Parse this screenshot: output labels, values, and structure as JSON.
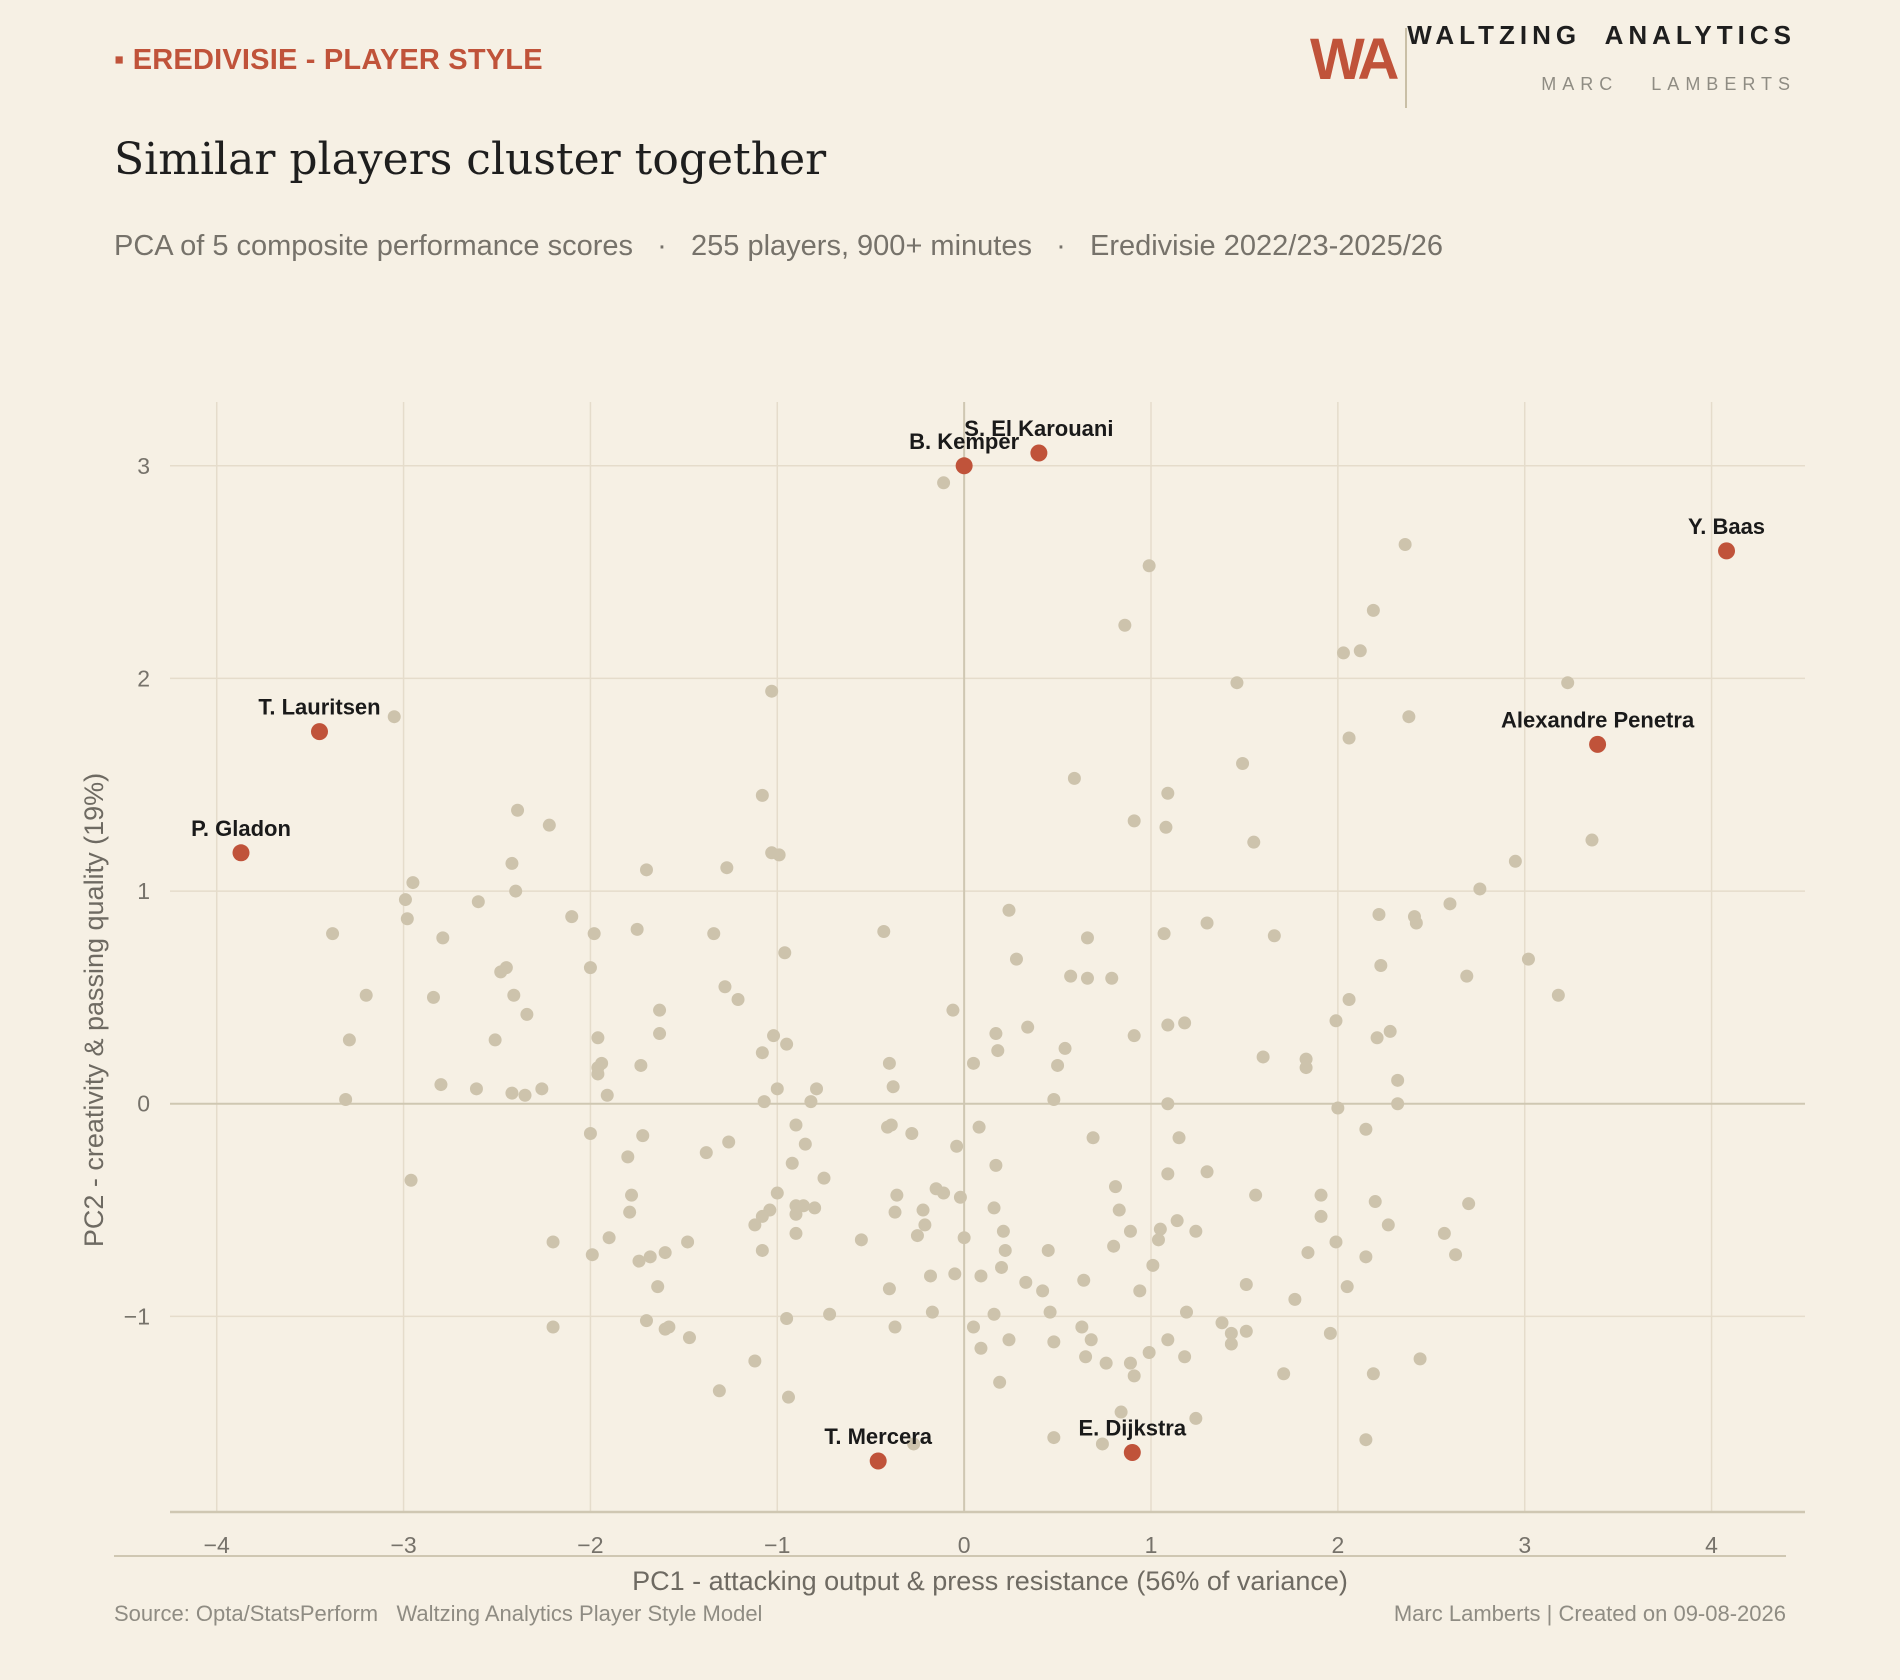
{
  "header": {
    "kicker": "▪ EREDIVISIE - PLAYER STYLE",
    "logo_mark": "WA",
    "brand": "WALTZING  ANALYTICS",
    "author": "MARC   LAMBERTS",
    "title": "Similar players cluster together",
    "subtitle": "PCA of 5 composite performance scores   ·   255 players, 900+ minutes   ·   Eredivisie 2022/23-2025/26"
  },
  "footer": {
    "source": "Source: Opta/StatsPerform   Waltzing Analytics Player Style Model",
    "credit": "Marc Lamberts | Created on 09-08-2026"
  },
  "colors": {
    "background": "#f6f0e4",
    "accent": "#c0533a",
    "points": "#cdc3ac",
    "grid": "#e5dccb",
    "zero_line": "#cfc7b2"
  },
  "chart_data": {
    "type": "scatter",
    "xlabel": "PC1 - attacking output & press resistance (56% of variance)",
    "ylabel": "PC2 - creativity & passing quality (19%)",
    "xlim": [
      -4.25,
      4.5
    ],
    "ylim": [
      -1.92,
      3.3
    ],
    "xticks": [
      -4,
      -3,
      -2,
      -1,
      0,
      1,
      2,
      3,
      4
    ],
    "yticks": [
      -1,
      0,
      1,
      2,
      3
    ],
    "grid": true,
    "highlighted": [
      {
        "name": "B. Kemper",
        "x": 0.0,
        "y": 3.0
      },
      {
        "name": "S. El Karouani",
        "x": 0.4,
        "y": 3.06
      },
      {
        "name": "Y. Baas",
        "x": 4.08,
        "y": 2.6
      },
      {
        "name": "Alexandre Penetra",
        "x": 3.39,
        "y": 1.69
      },
      {
        "name": "T. Lauritsen",
        "x": -3.45,
        "y": 1.75
      },
      {
        "name": "P. Gladon",
        "x": -3.87,
        "y": 1.18
      },
      {
        "name": "T. Mercera",
        "x": -0.46,
        "y": -1.68
      },
      {
        "name": "E. Dijkstra",
        "x": 0.9,
        "y": -1.64
      }
    ],
    "points": [
      [
        -0.11,
        2.92
      ],
      [
        0.99,
        2.53
      ],
      [
        0.86,
        2.25
      ],
      [
        2.36,
        2.63
      ],
      [
        2.19,
        2.32
      ],
      [
        2.03,
        2.12
      ],
      [
        2.12,
        2.13
      ],
      [
        1.46,
        1.98
      ],
      [
        3.23,
        1.98
      ],
      [
        2.06,
        1.72
      ],
      [
        2.38,
        1.82
      ],
      [
        1.49,
        1.6
      ],
      [
        0.59,
        1.53
      ],
      [
        1.09,
        1.46
      ],
      [
        0.91,
        1.33
      ],
      [
        1.08,
        1.3
      ],
      [
        1.55,
        1.23
      ],
      [
        3.36,
        1.24
      ],
      [
        2.95,
        1.14
      ],
      [
        2.76,
        1.01
      ],
      [
        2.6,
        0.94
      ],
      [
        2.22,
        0.89
      ],
      [
        2.41,
        0.88
      ],
      [
        2.42,
        0.85
      ],
      [
        1.3,
        0.85
      ],
      [
        1.66,
        0.79
      ],
      [
        1.07,
        0.8
      ],
      [
        0.66,
        0.78
      ],
      [
        0.24,
        0.91
      ],
      [
        0.28,
        0.68
      ],
      [
        0.57,
        0.6
      ],
      [
        0.66,
        0.59
      ],
      [
        0.79,
        0.59
      ],
      [
        2.23,
        0.65
      ],
      [
        2.69,
        0.6
      ],
      [
        3.02,
        0.68
      ],
      [
        3.18,
        0.51
      ],
      [
        2.06,
        0.49
      ],
      [
        1.99,
        0.39
      ],
      [
        2.28,
        0.34
      ],
      [
        2.21,
        0.31
      ],
      [
        1.09,
        0.37
      ],
      [
        1.18,
        0.38
      ],
      [
        0.91,
        0.32
      ],
      [
        0.34,
        0.36
      ],
      [
        0.17,
        0.33
      ],
      [
        0.18,
        0.25
      ],
      [
        0.54,
        0.26
      ],
      [
        0.5,
        0.18
      ],
      [
        0.05,
        0.19
      ],
      [
        -0.06,
        0.44
      ],
      [
        1.6,
        0.22
      ],
      [
        1.83,
        0.21
      ],
      [
        1.83,
        0.17
      ],
      [
        2.32,
        0.11
      ],
      [
        0.48,
        0.02
      ],
      [
        1.09,
        0.0
      ],
      [
        2.32,
        0.0
      ],
      [
        2.0,
        -0.02
      ],
      [
        0.69,
        -0.16
      ],
      [
        1.15,
        -0.16
      ],
      [
        2.15,
        -0.12
      ],
      [
        1.3,
        -0.32
      ],
      [
        1.09,
        -0.33
      ],
      [
        0.17,
        -0.29
      ],
      [
        -0.04,
        -0.2
      ],
      [
        0.08,
        -0.11
      ],
      [
        0.81,
        -0.39
      ],
      [
        0.83,
        -0.5
      ],
      [
        1.56,
        -0.43
      ],
      [
        1.91,
        -0.43
      ],
      [
        2.2,
        -0.46
      ],
      [
        2.7,
        -0.47
      ],
      [
        0.16,
        -0.49
      ],
      [
        -0.02,
        -0.44
      ],
      [
        -0.11,
        -0.42
      ],
      [
        -0.15,
        -0.4
      ],
      [
        -0.22,
        -0.5
      ],
      [
        -0.21,
        -0.57
      ],
      [
        -0.25,
        -0.62
      ],
      [
        -0.36,
        -0.43
      ],
      [
        -0.37,
        -0.51
      ],
      [
        0.0,
        -0.63
      ],
      [
        0.21,
        -0.6
      ],
      [
        0.22,
        -0.69
      ],
      [
        0.89,
        -0.6
      ],
      [
        1.05,
        -0.59
      ],
      [
        1.14,
        -0.55
      ],
      [
        1.04,
        -0.64
      ],
      [
        1.24,
        -0.6
      ],
      [
        1.91,
        -0.53
      ],
      [
        2.27,
        -0.57
      ],
      [
        2.57,
        -0.61
      ],
      [
        2.63,
        -0.71
      ],
      [
        1.99,
        -0.65
      ],
      [
        1.84,
        -0.7
      ],
      [
        2.15,
        -0.72
      ],
      [
        0.8,
        -0.67
      ],
      [
        1.01,
        -0.76
      ],
      [
        0.45,
        -0.69
      ],
      [
        0.2,
        -0.77
      ],
      [
        0.09,
        -0.81
      ],
      [
        -0.05,
        -0.8
      ],
      [
        -0.18,
        -0.81
      ],
      [
        0.33,
        -0.84
      ],
      [
        0.42,
        -0.88
      ],
      [
        0.64,
        -0.83
      ],
      [
        0.94,
        -0.88
      ],
      [
        1.51,
        -0.85
      ],
      [
        2.05,
        -0.86
      ],
      [
        1.77,
        -0.92
      ],
      [
        1.19,
        -0.98
      ],
      [
        0.46,
        -0.98
      ],
      [
        0.16,
        -0.99
      ],
      [
        0.05,
        -1.05
      ],
      [
        -0.17,
        -0.98
      ],
      [
        -0.37,
        -1.05
      ],
      [
        -0.4,
        -0.87
      ],
      [
        0.09,
        -1.15
      ],
      [
        0.24,
        -1.11
      ],
      [
        0.48,
        -1.12
      ],
      [
        0.63,
        -1.05
      ],
      [
        0.68,
        -1.11
      ],
      [
        0.65,
        -1.19
      ],
      [
        0.76,
        -1.22
      ],
      [
        0.99,
        -1.17
      ],
      [
        1.09,
        -1.11
      ],
      [
        1.18,
        -1.19
      ],
      [
        0.89,
        -1.22
      ],
      [
        0.91,
        -1.28
      ],
      [
        0.19,
        -1.31
      ],
      [
        1.38,
        -1.03
      ],
      [
        1.43,
        -1.08
      ],
      [
        1.43,
        -1.13
      ],
      [
        1.51,
        -1.07
      ],
      [
        1.96,
        -1.08
      ],
      [
        1.71,
        -1.27
      ],
      [
        2.19,
        -1.27
      ],
      [
        2.44,
        -1.2
      ],
      [
        0.48,
        -1.57
      ],
      [
        0.74,
        -1.6
      ],
      [
        0.84,
        -1.45
      ],
      [
        1.24,
        -1.48
      ],
      [
        2.15,
        -1.58
      ],
      [
        -0.27,
        -1.6
      ],
      [
        -0.39,
        -0.1
      ],
      [
        -0.41,
        -0.11
      ],
      [
        -0.28,
        -0.14
      ],
      [
        -0.38,
        0.08
      ],
      [
        -0.4,
        0.19
      ],
      [
        -0.43,
        0.81
      ],
      [
        -0.75,
        -0.35
      ],
      [
        -0.72,
        -0.99
      ],
      [
        -0.55,
        -0.64
      ],
      [
        -0.8,
        -0.49
      ],
      [
        -0.86,
        -0.48
      ],
      [
        -0.9,
        -0.48
      ],
      [
        -0.9,
        -0.52
      ],
      [
        -0.9,
        -0.61
      ],
      [
        -0.92,
        -0.28
      ],
      [
        -0.9,
        -0.1
      ],
      [
        -0.85,
        -0.19
      ],
      [
        -1.0,
        -0.42
      ],
      [
        -1.04,
        -0.5
      ],
      [
        -1.08,
        -0.53
      ],
      [
        -1.12,
        -0.57
      ],
      [
        -1.08,
        -0.69
      ],
      [
        -0.95,
        -1.01
      ],
      [
        -0.94,
        -1.38
      ],
      [
        -1.12,
        -1.21
      ],
      [
        -1.31,
        -1.35
      ],
      [
        -1.38,
        -0.23
      ],
      [
        -1.26,
        -0.18
      ],
      [
        -0.82,
        0.01
      ],
      [
        -0.79,
        0.07
      ],
      [
        -1.0,
        0.07
      ],
      [
        -1.07,
        0.01
      ],
      [
        -1.08,
        0.24
      ],
      [
        -0.95,
        0.28
      ],
      [
        -1.02,
        0.32
      ],
      [
        -0.96,
        0.71
      ],
      [
        -1.21,
        0.49
      ],
      [
        -1.28,
        0.55
      ],
      [
        -1.34,
        0.8
      ],
      [
        -0.99,
        1.17
      ],
      [
        -1.03,
        1.18
      ],
      [
        -1.27,
        1.11
      ],
      [
        -1.08,
        1.45
      ],
      [
        -1.03,
        1.94
      ],
      [
        -1.63,
        0.44
      ],
      [
        -1.63,
        0.33
      ],
      [
        -1.73,
        0.18
      ],
      [
        -1.75,
        0.82
      ],
      [
        -1.7,
        1.1
      ],
      [
        -1.72,
        -0.15
      ],
      [
        -1.8,
        -0.25
      ],
      [
        -1.78,
        -0.43
      ],
      [
        -1.79,
        -0.51
      ],
      [
        -1.9,
        -0.63
      ],
      [
        -1.74,
        -0.74
      ],
      [
        -1.68,
        -0.72
      ],
      [
        -1.6,
        -0.7
      ],
      [
        -1.64,
        -0.86
      ],
      [
        -1.48,
        -0.65
      ],
      [
        -1.7,
        -1.02
      ],
      [
        -1.6,
        -1.06
      ],
      [
        -1.58,
        -1.05
      ],
      [
        -1.47,
        -1.1
      ],
      [
        -1.99,
        -0.71
      ],
      [
        -2.0,
        -0.14
      ],
      [
        -2.2,
        -0.65
      ],
      [
        -2.2,
        -1.05
      ],
      [
        -1.96,
        0.31
      ],
      [
        -1.94,
        0.19
      ],
      [
        -1.96,
        0.14
      ],
      [
        -1.96,
        0.17
      ],
      [
        -1.91,
        0.04
      ],
      [
        -2.0,
        0.64
      ],
      [
        -1.98,
        0.8
      ],
      [
        -2.1,
        0.88
      ],
      [
        -2.22,
        1.31
      ],
      [
        -2.26,
        0.07
      ],
      [
        -2.35,
        0.04
      ],
      [
        -2.42,
        0.05
      ],
      [
        -2.34,
        0.42
      ],
      [
        -2.41,
        0.51
      ],
      [
        -2.45,
        0.64
      ],
      [
        -2.48,
        0.62
      ],
      [
        -2.51,
        0.3
      ],
      [
        -2.4,
        1.0
      ],
      [
        -2.42,
        1.13
      ],
      [
        -2.39,
        1.38
      ],
      [
        -2.6,
        0.95
      ],
      [
        -2.61,
        0.07
      ],
      [
        -2.8,
        0.09
      ],
      [
        -2.84,
        0.5
      ],
      [
        -2.79,
        0.78
      ],
      [
        -2.98,
        0.87
      ],
      [
        -2.99,
        0.96
      ],
      [
        -2.95,
        1.04
      ],
      [
        -2.96,
        -0.36
      ],
      [
        -3.31,
        0.02
      ],
      [
        -3.29,
        0.3
      ],
      [
        -3.2,
        0.51
      ],
      [
        -3.38,
        0.8
      ],
      [
        -3.05,
        1.82
      ]
    ]
  }
}
